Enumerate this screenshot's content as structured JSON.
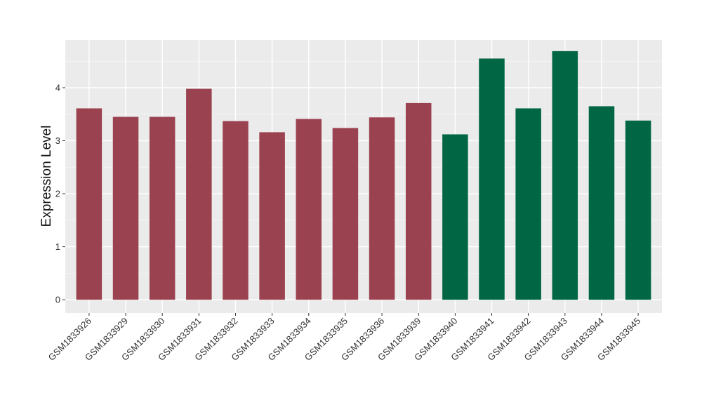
{
  "chart_data": {
    "type": "bar",
    "title": "",
    "xlabel": "",
    "ylabel": "Expression Level",
    "ylim": [
      -0.25,
      4.9
    ],
    "yticks": [
      0,
      1,
      2,
      3,
      4
    ],
    "grid": true,
    "background": "#EBEBEB",
    "categories": [
      "GSM1833926",
      "GSM1833929",
      "GSM1833930",
      "GSM1833931",
      "GSM1833932",
      "GSM1833933",
      "GSM1833934",
      "GSM1833935",
      "GSM1833936",
      "GSM1833939",
      "GSM1833940",
      "GSM1833941",
      "GSM1833942",
      "GSM1833943",
      "GSM1833944",
      "GSM1833945"
    ],
    "values": [
      3.61,
      3.45,
      3.45,
      3.98,
      3.37,
      3.16,
      3.41,
      3.24,
      3.44,
      3.71,
      3.12,
      4.55,
      3.61,
      4.69,
      3.65,
      3.38
    ],
    "bar_colors": [
      "#9B4250",
      "#9B4250",
      "#9B4250",
      "#9B4250",
      "#9B4250",
      "#9B4250",
      "#9B4250",
      "#9B4250",
      "#9B4250",
      "#9B4250",
      "#006644",
      "#006644",
      "#006644",
      "#006644",
      "#006644",
      "#006644"
    ]
  }
}
